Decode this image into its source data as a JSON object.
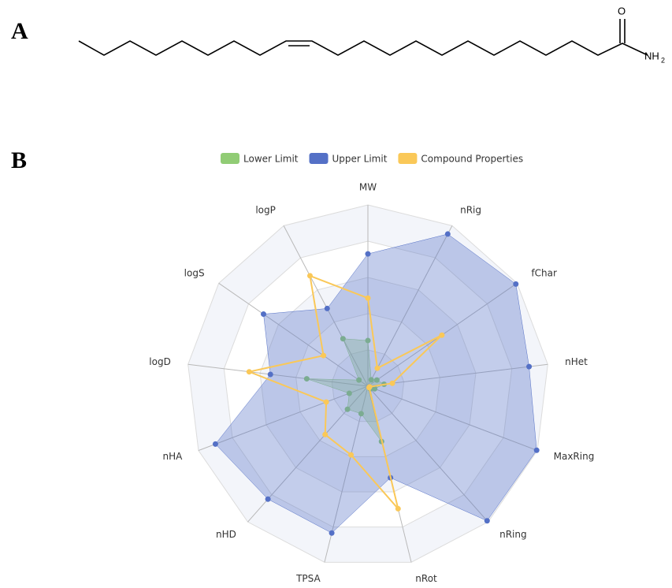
{
  "panels": [
    "A",
    "B"
  ],
  "structure": {
    "oxygen": "O",
    "amine": "NH",
    "amine_subscript": "2"
  },
  "chart_data": {
    "type": "radar",
    "categories": [
      "MW",
      "nRig",
      "fChar",
      "nHet",
      "MaxRing",
      "nRing",
      "nRot",
      "TPSA",
      "nHD",
      "nHA",
      "logD",
      "logS",
      "logP"
    ],
    "rlim": [
      0,
      5
    ],
    "grid_rings": 5,
    "legend": "top",
    "series": [
      {
        "name": "Lower Limit",
        "color": "#91cc75",
        "fill": true,
        "values": [
          1.26,
          0.2,
          0.3,
          0.45,
          0.2,
          0.1,
          1.57,
          0.78,
          0.85,
          0.55,
          1.7,
          0.3,
          1.48
        ]
      },
      {
        "name": "Upper Limit",
        "color": "#5470c6",
        "fill": true,
        "values": [
          3.65,
          4.74,
          4.96,
          4.48,
          4.98,
          4.96,
          2.6,
          4.17,
          4.16,
          4.5,
          2.71,
          3.5,
          2.42
        ]
      },
      {
        "name": "Compound Properties",
        "color": "#fac858",
        "fill": false,
        "values": [
          2.43,
          0.56,
          2.48,
          0.68,
          0.05,
          0.05,
          3.48,
          1.95,
          1.78,
          1.23,
          3.3,
          1.49,
          3.44
        ]
      }
    ]
  }
}
